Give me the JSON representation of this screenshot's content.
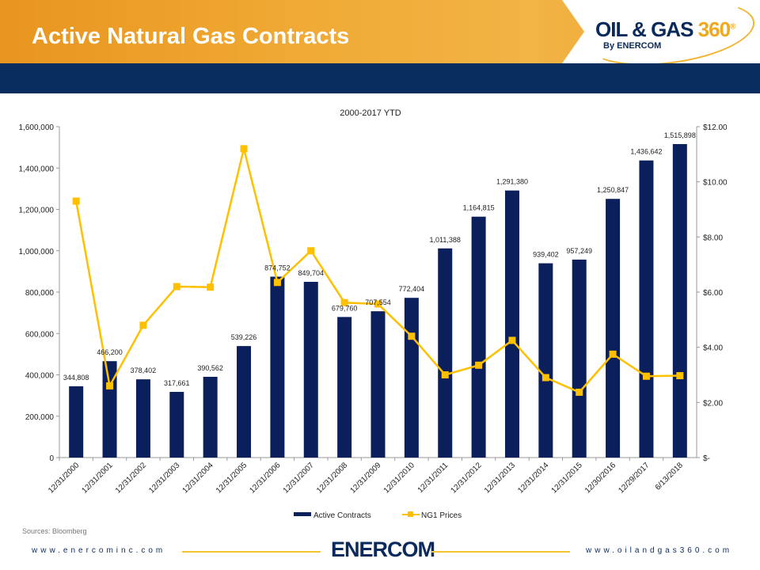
{
  "header": {
    "title": "Active Natural Gas Contracts",
    "logo_main": "OIL & GAS",
    "logo_num": "360",
    "logo_reg": "®",
    "logo_sub": "By ENERCOM"
  },
  "footer": {
    "source": "Sources: Bloomberg",
    "left_url": "www.enercominc.com",
    "right_url": "www.oilandgas360.com",
    "center_logo": "ENERCOM"
  },
  "colors": {
    "bars": "#0b1f5c",
    "line": "#ffc000",
    "header_navy": "#0a2d5f",
    "header_orange": "#f0aa35"
  },
  "chart_data": {
    "type": "bar+line",
    "title": "2000-2017 YTD",
    "categories": [
      "12/31/2000",
      "12/31/2001",
      "12/31/2002",
      "12/31/2003",
      "12/31/2004",
      "12/31/2005",
      "12/31/2006",
      "12/31/2007",
      "12/31/2008",
      "12/31/2009",
      "12/31/2010",
      "12/31/2011",
      "12/31/2012",
      "12/31/2013",
      "12/31/2014",
      "12/31/2015",
      "12/30/2016",
      "12/29/2017",
      "6/13/2018"
    ],
    "series": [
      {
        "name": "Active Contracts",
        "type": "bar",
        "axis": "left",
        "values": [
          344808,
          466200,
          378402,
          317661,
          390562,
          539226,
          874752,
          849704,
          679760,
          707554,
          772404,
          1011388,
          1164815,
          1291380,
          939402,
          957249,
          1250847,
          1436642,
          1515898
        ],
        "labels": [
          "344,808",
          "466,200",
          "378,402",
          "317,661",
          "390,562",
          "539,226",
          "874,752",
          "849,704",
          "679,760",
          "707,554",
          "772,404",
          "1,011,388",
          "1,164,815",
          "1,291,380",
          "939,402",
          "957,249",
          "1,250,847",
          "1,436,642",
          "1,515,898"
        ]
      },
      {
        "name": "NG1 Prices",
        "type": "line",
        "axis": "right",
        "values": [
          9.3,
          2.6,
          4.8,
          6.2,
          6.18,
          11.2,
          6.35,
          7.5,
          5.62,
          5.57,
          4.4,
          3.0,
          3.35,
          4.25,
          2.9,
          2.37,
          3.75,
          2.95,
          2.97
        ]
      }
    ],
    "left_axis": {
      "range": [
        0,
        1600000
      ],
      "ticks": [
        "0",
        "200,000",
        "400,000",
        "600,000",
        "800,000",
        "1,000,000",
        "1,200,000",
        "1,400,000",
        "1,600,000"
      ]
    },
    "right_axis": {
      "range": [
        0,
        12
      ],
      "ticks": [
        "$-",
        "$2.00",
        "$4.00",
        "$6.00",
        "$8.00",
        "$10.00",
        "$12.00"
      ]
    },
    "grid": false,
    "legend": "bottom"
  }
}
